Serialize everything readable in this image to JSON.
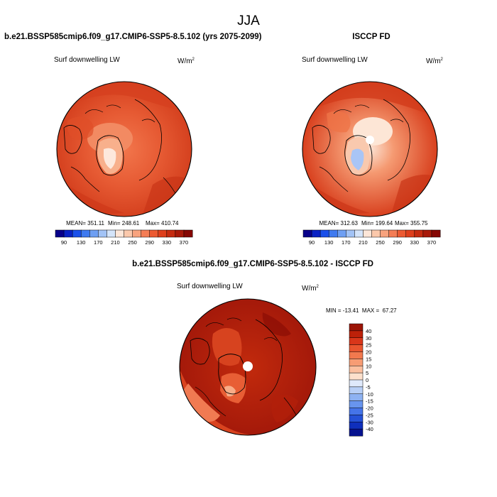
{
  "page": {
    "season": "JJA"
  },
  "chart_data": [
    {
      "type": "heatmap",
      "projection": "north polar stereographic",
      "title": "b.e21.BSSP585cmip6.f09_g17.CMIP6-SSP5-8.5.102 (yrs 2075-2099)",
      "variable": "Surf downwelling LW",
      "units": "W/m",
      "units_sup": "2",
      "stats": {
        "mean_label": "MEAN= 351.11",
        "min_label": "Min= 248.61",
        "max_label": "Max= 410.74",
        "mean": 351.11,
        "min": 248.61,
        "max": 410.74
      },
      "colorbar_ticks": [
        "90",
        "130",
        "170",
        "210",
        "250",
        "290",
        "330",
        "370"
      ],
      "colorbar_colors": [
        "#08008a",
        "#0a22c4",
        "#1a50ea",
        "#3f7af0",
        "#6e9ff3",
        "#a2c3f6",
        "#d4e4fa",
        "#fde6d8",
        "#fbc8ab",
        "#f8a37e",
        "#f47d55",
        "#ec5a32",
        "#de3f1c",
        "#c52b10",
        "#a81909",
        "#860703"
      ]
    },
    {
      "type": "heatmap",
      "projection": "north polar stereographic",
      "title": "ISCCP FD",
      "variable": "Surf downwelling LW",
      "units": "W/m",
      "units_sup": "2",
      "stats": {
        "mean_label": "MEAN= 312.63",
        "min_label": "Min= 199.64",
        "max_label": "Max= 355.75",
        "mean": 312.63,
        "min": 199.64,
        "max": 355.75
      },
      "colorbar_ticks": [
        "90",
        "130",
        "170",
        "210",
        "250",
        "290",
        "330",
        "370"
      ],
      "colorbar_colors": [
        "#08008a",
        "#0a22c4",
        "#1a50ea",
        "#3f7af0",
        "#6e9ff3",
        "#a2c3f6",
        "#d4e4fa",
        "#fde6d8",
        "#fbc8ab",
        "#f8a37e",
        "#f47d55",
        "#ec5a32",
        "#de3f1c",
        "#c52b10",
        "#a81909",
        "#860703"
      ]
    },
    {
      "type": "heatmap",
      "projection": "north polar stereographic",
      "title": "b.e21.BSSP585cmip6.f09_g17.CMIP6-SSP5-8.5.102 - ISCCP FD",
      "variable": "Surf downwelling LW",
      "units": "W/m",
      "units_sup": "2",
      "stats": {
        "minmax_label": "MIN = -13.41  MAX =  67.27",
        "min": -13.41,
        "max": 67.27
      },
      "colorbar_ticks": [
        "40",
        "30",
        "25",
        "20",
        "15",
        "10",
        "5",
        "0",
        "-5",
        "-10",
        "-15",
        "-20",
        "-25",
        "-30",
        "-40"
      ],
      "colorbar_colors": [
        "#9c1406",
        "#bd2109",
        "#d9361a",
        "#e9552f",
        "#f2794e",
        "#f79c74",
        "#fbbf9f",
        "#fde0cc",
        "#dfe9fb",
        "#b8cff6",
        "#8eb2f2",
        "#6895ee",
        "#4574e8",
        "#2551d6",
        "#0f2fbc",
        "#06128f"
      ]
    }
  ]
}
